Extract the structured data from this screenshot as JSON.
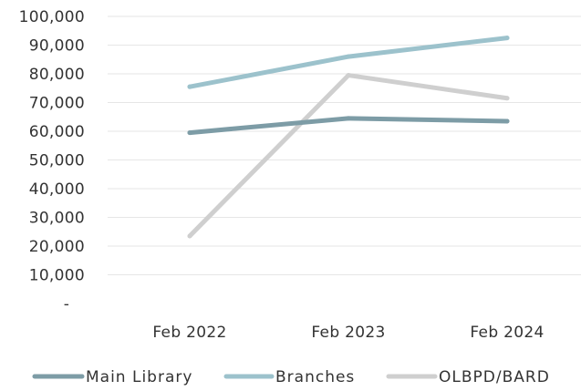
{
  "chart_data": {
    "type": "line",
    "categories": [
      "Feb 2022",
      "Feb 2023",
      "Feb 2024"
    ],
    "series": [
      {
        "name": "Main Library",
        "values": [
          59500,
          64500,
          63500
        ],
        "color": "#7d9ca6"
      },
      {
        "name": "Branches",
        "values": [
          75500,
          86000,
          92500
        ],
        "color": "#9cc2cc"
      },
      {
        "name": "OLBPD/BARD",
        "values": [
          23500,
          79500,
          71500
        ],
        "color": "#cfcfcf"
      }
    ],
    "yticks": [
      "100,000",
      "90,000",
      "80,000",
      "70,000",
      "60,000",
      "50,000",
      "40,000",
      "30,000",
      "20,000",
      "10,000",
      "-"
    ],
    "ylim": [
      0,
      100000
    ],
    "grid": true,
    "legend_position": "bottom"
  }
}
